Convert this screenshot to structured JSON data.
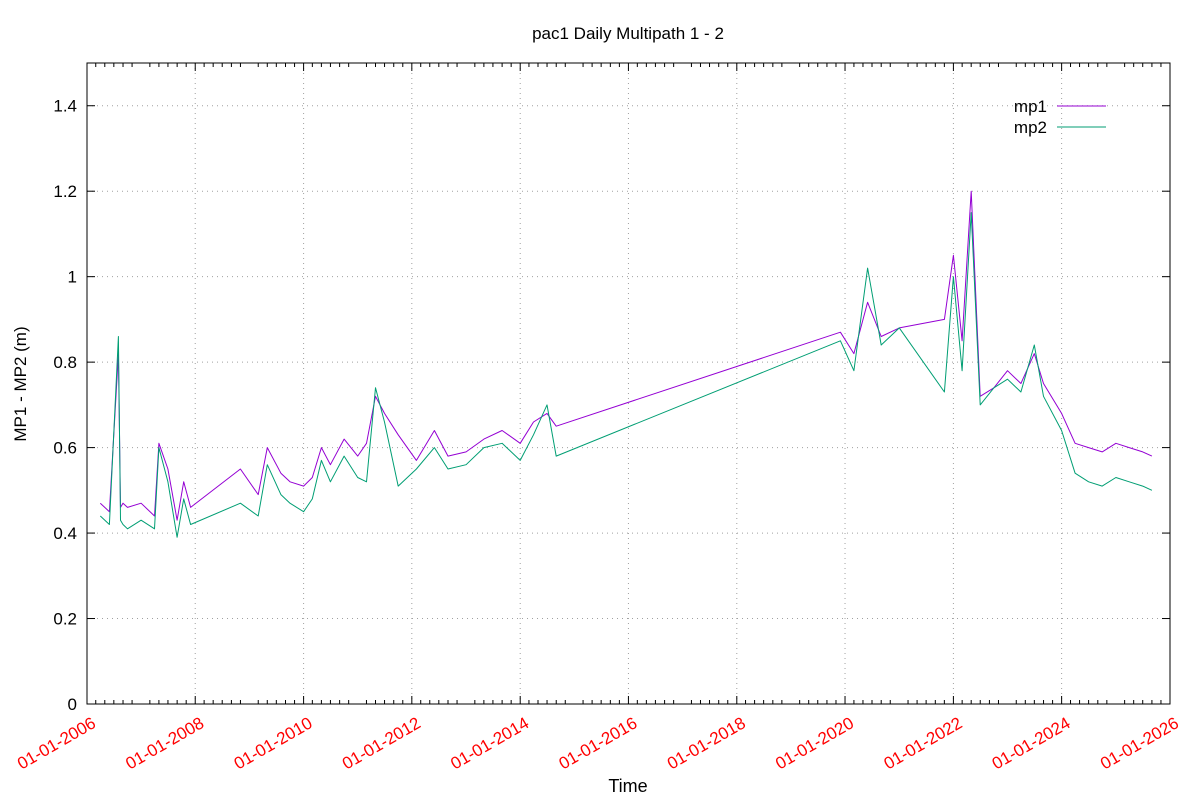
{
  "chart_data": {
    "type": "line",
    "title": "pac1 Daily Multipath 1 - 2",
    "xlabel": "Time",
    "ylabel": "MP1 - MP2 (m)",
    "ylim": [
      0,
      1.5
    ],
    "yticks": [
      0,
      0.2,
      0.4,
      0.6,
      0.8,
      1,
      1.2,
      1.4
    ],
    "ytick_labels": [
      "0",
      "0.2",
      "0.4",
      "0.6",
      "0.8",
      "1",
      "1.2",
      "1.4"
    ],
    "xlim": [
      "2006-01-01",
      "2026-01-01"
    ],
    "xticks": [
      "2006-01-01",
      "2008-01-01",
      "2010-01-01",
      "2012-01-01",
      "2014-01-01",
      "2016-01-01",
      "2018-01-01",
      "2020-01-01",
      "2022-01-01",
      "2024-01-01",
      "2026-01-01"
    ],
    "xtick_labels": [
      "01-01-2006",
      "01-01-2008",
      "01-01-2010",
      "01-01-2012",
      "01-01-2014",
      "01-01-2016",
      "01-01-2018",
      "01-01-2020",
      "01-01-2022",
      "01-01-2024",
      "01-01-2026"
    ],
    "xtick_label_color": "#ff0000",
    "grid": true,
    "legend_position": "top-right",
    "series": [
      {
        "name": "mp1",
        "color": "#9400d3",
        "x": [
          "2006-04-01",
          "2006-06-01",
          "2006-08-01",
          "2006-08-15",
          "2006-09-01",
          "2006-10-01",
          "2007-01-01",
          "2007-04-01",
          "2007-05-01",
          "2007-07-01",
          "2007-09-01",
          "2007-10-15",
          "2007-12-01",
          "2008-11-01",
          "2009-03-01",
          "2009-05-01",
          "2009-08-01",
          "2009-10-01",
          "2010-01-01",
          "2010-03-01",
          "2010-05-01",
          "2010-07-01",
          "2010-10-01",
          "2011-01-01",
          "2011-03-01",
          "2011-05-01",
          "2011-07-01",
          "2011-10-01",
          "2012-02-01",
          "2012-06-01",
          "2012-09-01",
          "2013-01-01",
          "2013-05-01",
          "2013-09-01",
          "2014-01-01",
          "2014-04-01",
          "2014-07-01",
          "2014-09-01",
          "2019-12-01",
          "2020-03-01",
          "2020-06-01",
          "2020-09-01",
          "2021-01-01",
          "2021-11-01",
          "2022-01-01",
          "2022-03-01",
          "2022-05-01",
          "2022-07-01",
          "2022-10-01",
          "2023-01-01",
          "2023-04-01",
          "2023-07-01",
          "2023-09-01",
          "2024-01-01",
          "2024-04-01",
          "2024-07-01",
          "2024-10-01",
          "2025-01-01",
          "2025-04-01",
          "2025-07-01",
          "2025-09-01"
        ],
        "values": [
          0.47,
          0.45,
          0.82,
          0.46,
          0.47,
          0.46,
          0.47,
          0.44,
          0.61,
          0.55,
          0.43,
          0.52,
          0.46,
          0.55,
          0.49,
          0.6,
          0.54,
          0.52,
          0.51,
          0.53,
          0.6,
          0.56,
          0.62,
          0.58,
          0.61,
          0.72,
          0.68,
          0.63,
          0.57,
          0.64,
          0.58,
          0.59,
          0.62,
          0.64,
          0.61,
          0.66,
          0.68,
          0.65,
          0.87,
          0.82,
          0.94,
          0.86,
          0.88,
          0.9,
          1.05,
          0.85,
          1.2,
          0.72,
          0.74,
          0.78,
          0.75,
          0.82,
          0.75,
          0.68,
          0.61,
          0.6,
          0.59,
          0.61,
          0.6,
          0.59,
          0.58
        ]
      },
      {
        "name": "mp2",
        "color": "#009e73",
        "x": [
          "2006-04-01",
          "2006-06-01",
          "2006-08-01",
          "2006-08-15",
          "2006-09-01",
          "2006-10-01",
          "2007-01-01",
          "2007-04-01",
          "2007-05-01",
          "2007-07-01",
          "2007-09-01",
          "2007-10-15",
          "2007-12-01",
          "2008-11-01",
          "2009-03-01",
          "2009-05-01",
          "2009-08-01",
          "2009-10-01",
          "2010-01-01",
          "2010-03-01",
          "2010-05-01",
          "2010-07-01",
          "2010-10-01",
          "2011-01-01",
          "2011-03-01",
          "2011-05-01",
          "2011-07-01",
          "2011-10-01",
          "2012-02-01",
          "2012-06-01",
          "2012-09-01",
          "2013-01-01",
          "2013-05-01",
          "2013-09-01",
          "2014-01-01",
          "2014-04-01",
          "2014-07-01",
          "2014-09-01",
          "2019-12-01",
          "2020-03-01",
          "2020-06-01",
          "2020-09-01",
          "2021-01-01",
          "2021-11-01",
          "2022-01-01",
          "2022-03-01",
          "2022-05-01",
          "2022-07-01",
          "2022-10-01",
          "2023-01-01",
          "2023-04-01",
          "2023-07-01",
          "2023-09-01",
          "2024-01-01",
          "2024-04-01",
          "2024-07-01",
          "2024-10-01",
          "2025-01-01",
          "2025-04-01",
          "2025-07-01",
          "2025-09-01"
        ],
        "values": [
          0.44,
          0.42,
          0.86,
          0.43,
          0.42,
          0.41,
          0.43,
          0.41,
          0.6,
          0.52,
          0.39,
          0.48,
          0.42,
          0.47,
          0.44,
          0.56,
          0.49,
          0.47,
          0.45,
          0.48,
          0.57,
          0.52,
          0.58,
          0.53,
          0.52,
          0.74,
          0.66,
          0.51,
          0.55,
          0.6,
          0.55,
          0.56,
          0.6,
          0.61,
          0.57,
          0.63,
          0.7,
          0.58,
          0.85,
          0.78,
          1.02,
          0.84,
          0.88,
          0.73,
          1.0,
          0.78,
          1.15,
          0.7,
          0.74,
          0.76,
          0.73,
          0.84,
          0.72,
          0.64,
          0.54,
          0.52,
          0.51,
          0.53,
          0.52,
          0.51,
          0.5
        ]
      }
    ]
  }
}
